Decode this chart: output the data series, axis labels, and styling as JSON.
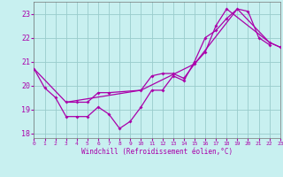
{
  "xlabel": "Windchill (Refroidissement éolien,°C)",
  "bg_color": "#c8f0f0",
  "line_color": "#aa00aa",
  "grid_color": "#99cccc",
  "xlim": [
    0,
    23
  ],
  "ylim": [
    17.8,
    23.5
  ],
  "xticks": [
    0,
    1,
    2,
    3,
    4,
    5,
    6,
    7,
    8,
    9,
    10,
    11,
    12,
    13,
    14,
    15,
    16,
    17,
    18,
    19,
    20,
    21,
    22,
    23
  ],
  "yticks": [
    18,
    19,
    20,
    21,
    22,
    23
  ],
  "line1_x": [
    0,
    1,
    2,
    3,
    4,
    5,
    6,
    7,
    8,
    9,
    10,
    11,
    12,
    13,
    14,
    15,
    16,
    17,
    18,
    19,
    20,
    21,
    22
  ],
  "line1_y": [
    20.7,
    19.9,
    19.5,
    18.7,
    18.7,
    18.7,
    19.1,
    18.8,
    18.2,
    18.5,
    19.1,
    19.8,
    19.8,
    20.4,
    20.2,
    21.0,
    22.0,
    22.3,
    22.8,
    23.2,
    23.1,
    22.0,
    21.7
  ],
  "line2_x": [
    3,
    4,
    5,
    6,
    7,
    10,
    11,
    12,
    13,
    14,
    15,
    16,
    17,
    18,
    22,
    23
  ],
  "line2_y": [
    19.3,
    19.3,
    19.3,
    19.7,
    19.7,
    19.8,
    20.4,
    20.5,
    20.5,
    20.3,
    20.9,
    21.4,
    22.5,
    23.2,
    21.8,
    21.6
  ],
  "line3_x": [
    0,
    3,
    10,
    15,
    19,
    22,
    23
  ],
  "line3_y": [
    20.7,
    19.3,
    19.8,
    20.9,
    23.2,
    21.8,
    21.6
  ],
  "font_family": "monospace"
}
